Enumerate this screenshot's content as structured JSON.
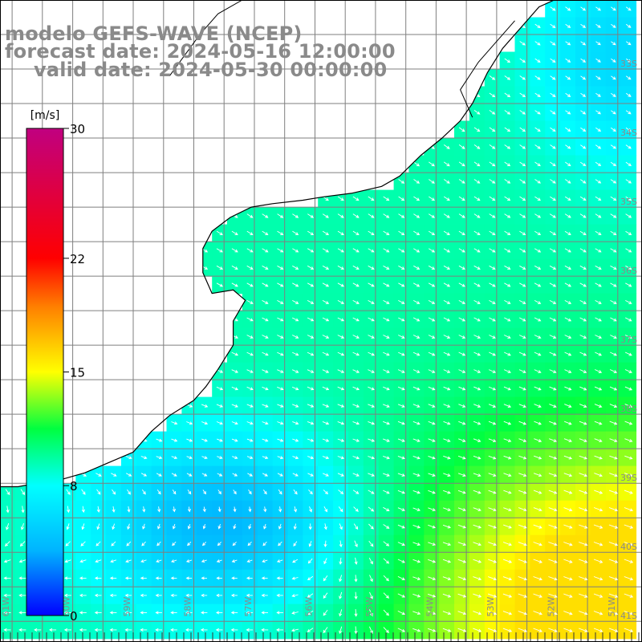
{
  "title": {
    "model": "modelo GEFS-WAVE (NCEP)",
    "forecast": "forecast date: 2024-05-16 12:00:00",
    "valid": "valid date: 2024-05-30 00:00:00"
  },
  "colorbar": {
    "unit": "[m/s]",
    "ticks": [
      {
        "label": "30",
        "value": 30
      },
      {
        "label": "22",
        "value": 22
      },
      {
        "label": "15",
        "value": 15
      },
      {
        "label": "8",
        "value": 8
      },
      {
        "label": "0",
        "value": 0
      }
    ],
    "range": [
      0,
      30
    ],
    "colors": [
      "#0000ff",
      "#00b4ff",
      "#00ffff",
      "#00ff40",
      "#ffff00",
      "#ff8000",
      "#ff0000",
      "#c00080"
    ]
  },
  "map": {
    "lat_labels": [
      "33S",
      "34S",
      "35S",
      "36S",
      "37S",
      "38S",
      "39S",
      "40S",
      "41S"
    ],
    "lon_labels": [
      "61W",
      "60W",
      "59W",
      "58W",
      "57W",
      "56W",
      "55W",
      "54W",
      "53W",
      "52W",
      "51W"
    ],
    "extent": {
      "lon": [
        -61.2,
        -50.6
      ],
      "lat": [
        -41.3,
        -32.0
      ]
    },
    "grid_step_deg": 0.5,
    "land_color": "#ffffff",
    "coast_color": "#000000",
    "arrow_color": "#ffffff"
  }
}
